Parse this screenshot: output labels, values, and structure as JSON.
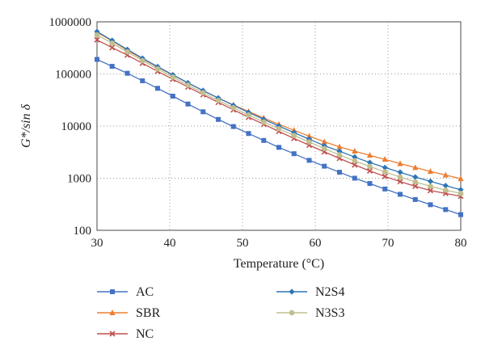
{
  "chart_data": {
    "type": "line",
    "xlabel": "Temperature (°C)",
    "ylabel": "G*/sin δ",
    "xlim": [
      30,
      80
    ],
    "ylim": [
      100,
      1000000
    ],
    "yscale": "log",
    "grid": "dotted",
    "legend_position": "bottom",
    "x_ticks": [
      "30",
      "40",
      "50",
      "60",
      "70",
      "80"
    ],
    "y_ticks": [
      "100",
      "1000",
      "10000",
      "100000",
      "1000000"
    ],
    "x": [
      30,
      32.08,
      34.17,
      36.25,
      38.33,
      40.42,
      42.5,
      44.58,
      46.67,
      48.75,
      50.83,
      52.92,
      55,
      57.08,
      59.17,
      61.25,
      63.33,
      65.42,
      67.5,
      69.58,
      71.67,
      73.75,
      75.83,
      77.92,
      80
    ],
    "series": [
      {
        "name": "AC",
        "color": "#4472C4",
        "marker": "square",
        "values": [
          190000,
          140000,
          103000,
          74000,
          53000,
          37500,
          26500,
          18800,
          13400,
          9800,
          7200,
          5300,
          3900,
          2950,
          2200,
          1700,
          1300,
          1000,
          790,
          620,
          490,
          390,
          310,
          250,
          200
        ]
      },
      {
        "name": "SBR",
        "color": "#ED7D31",
        "marker": "triangle",
        "values": [
          630000,
          430000,
          285000,
          195000,
          135000,
          95000,
          67000,
          48000,
          34500,
          25500,
          19000,
          14300,
          10800,
          8300,
          6400,
          5000,
          4000,
          3300,
          2750,
          2300,
          1900,
          1600,
          1350,
          1150,
          980
        ]
      },
      {
        "name": "NC",
        "color": "#C0504D",
        "marker": "x",
        "values": [
          450000,
          320000,
          230000,
          160000,
          112000,
          79000,
          56000,
          40000,
          28500,
          20500,
          14800,
          10800,
          7900,
          5800,
          4300,
          3200,
          2400,
          1800,
          1380,
          1080,
          860,
          700,
          580,
          510,
          450
        ]
      },
      {
        "name": "N2S4",
        "color": "#2E75B6",
        "marker": "diamond",
        "values": [
          650000,
          440000,
          295000,
          200000,
          138000,
          96000,
          67500,
          48000,
          34500,
          25000,
          18300,
          13500,
          10000,
          7500,
          5600,
          4200,
          3300,
          2550,
          2000,
          1600,
          1300,
          1050,
          870,
          720,
          600
        ]
      },
      {
        "name": "N3S3",
        "color": "#BFBF8F",
        "marker": "circle",
        "values": [
          560000,
          390000,
          265000,
          180000,
          125000,
          87000,
          61000,
          43500,
          31000,
          22500,
          16300,
          12000,
          8900,
          6600,
          4950,
          3700,
          2800,
          2150,
          1680,
          1320,
          1050,
          850,
          700,
          590,
          510
        ]
      }
    ]
  }
}
